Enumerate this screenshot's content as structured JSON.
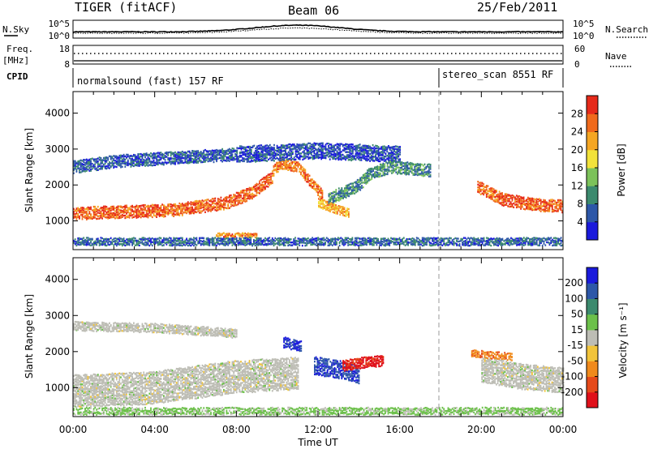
{
  "header": {
    "title": "TIGER (fitACF)",
    "beam": "Beam 06",
    "date": "25/Feb/2011"
  },
  "top_panels": {
    "nsky": {
      "label": "N.Sky",
      "ticks": [
        "10^5",
        "10^0"
      ],
      "right_ticks": [
        "10^5",
        "10^0"
      ],
      "right_label": "N.Search"
    },
    "freq": {
      "label_line1": "Freq.",
      "label_line2": "[MHz]",
      "ticks": [
        "18",
        "8"
      ],
      "right_ticks": [
        "60",
        "0"
      ],
      "right_label": "Nave"
    },
    "cpid": {
      "label": "CPID",
      "modes": [
        {
          "name": "normalsound (fast) 157 RF",
          "start_hour": 0,
          "end_hour": 18
        },
        {
          "name": "stereo_scan 8551 RF",
          "start_hour": 18,
          "end_hour": 24
        }
      ]
    }
  },
  "x_axis": {
    "label": "Time UT",
    "range_hours": [
      0,
      24
    ],
    "ticks": [
      "00:00",
      "04:00",
      "08:00",
      "12:00",
      "16:00",
      "20:00",
      "00:00"
    ]
  },
  "colors": {
    "power_scale": [
      "#1a1adc",
      "#2d57a8",
      "#3c8a6e",
      "#7cc25a",
      "#f2e23a",
      "#f5a623",
      "#f06a1c",
      "#e62a1a"
    ],
    "velocity_scale": [
      "#1a1adc",
      "#2d57a8",
      "#3c8a6e",
      "#6cc04a",
      "#bdbdb5",
      "#f2c43a",
      "#f08a1c",
      "#e64a1a",
      "#e0101a"
    ]
  },
  "chart_data": [
    {
      "type": "heatmap",
      "name": "power",
      "ylabel": "Slant Range [km]",
      "ylim": [
        200,
        4600
      ],
      "yticks": [
        "1000",
        "2000",
        "3000",
        "4000"
      ],
      "colorbar_label": "Power [dB]",
      "colorbar_ticks": [
        "4",
        "8",
        "12",
        "16",
        "20",
        "24",
        "28"
      ],
      "colorbar_range": [
        0,
        32
      ],
      "bands": [
        {
          "x": [
            0.0,
            5.0,
            7.5,
            8.8,
            9.8
          ],
          "y": [
            1200,
            1300,
            1500,
            1800,
            2250
          ],
          "width_km": 350,
          "value": 27
        },
        {
          "x": [
            9.8,
            10.2,
            11.0,
            12.2
          ],
          "y": [
            2400,
            2600,
            2500,
            1700
          ],
          "width_km": 300,
          "value": 25
        },
        {
          "x": [
            0.0,
            2.0,
            5.0,
            8.0
          ],
          "y": [
            2500,
            2650,
            2750,
            2850
          ],
          "width_km": 350,
          "value": 6
        },
        {
          "x": [
            8.0,
            10.0,
            12.0,
            14.0,
            16.0
          ],
          "y": [
            2850,
            2900,
            2950,
            2900,
            2850
          ],
          "width_km": 450,
          "value": 5
        },
        {
          "x": [
            12.5,
            14.0,
            14.5,
            15.5,
            17.5
          ],
          "y": [
            1600,
            2000,
            2300,
            2500,
            2400
          ],
          "width_km": 350,
          "value": 10
        },
        {
          "x": [
            19.8,
            21.0,
            22.5,
            24.0
          ],
          "y": [
            1950,
            1600,
            1450,
            1400
          ],
          "width_km": 350,
          "value": 27
        },
        {
          "x": [
            12.0,
            13.5
          ],
          "y": [
            1500,
            1200
          ],
          "width_km": 250,
          "value": 22
        },
        {
          "x": [
            7.0,
            9.0
          ],
          "y": [
            600,
            600
          ],
          "width_km": 120,
          "value": 24
        },
        {
          "x": [
            0.0,
            24.0
          ],
          "y": [
            420,
            420
          ],
          "width_km": 220,
          "value": 7
        }
      ]
    },
    {
      "type": "heatmap",
      "name": "velocity",
      "ylabel": "Slant Range [km]",
      "ylim": [
        200,
        4600
      ],
      "yticks": [
        "1000",
        "2000",
        "3000",
        "4000"
      ],
      "colorbar_label": "Velocity [m s⁻¹]",
      "colorbar_ticks": [
        "200",
        "100",
        "50",
        "15",
        "-15",
        "-50",
        "-100",
        "-200"
      ],
      "bands": [
        {
          "x": [
            0.0,
            4.0,
            8.0,
            11.0
          ],
          "y": [
            900,
            1000,
            1300,
            1400
          ],
          "width_km": 900,
          "value": 0
        },
        {
          "x": [
            0.0,
            4.0,
            8.0
          ],
          "y": [
            2700,
            2650,
            2500
          ],
          "width_km": 250,
          "value": 0
        },
        {
          "x": [
            11.8,
            13.0,
            14.0
          ],
          "y": [
            1600,
            1500,
            1350
          ],
          "width_km": 500,
          "value": 180
        },
        {
          "x": [
            13.2,
            14.3,
            15.2
          ],
          "y": [
            1600,
            1700,
            1750
          ],
          "width_km": 300,
          "value": -200
        },
        {
          "x": [
            10.3,
            11.2
          ],
          "y": [
            2250,
            2150
          ],
          "width_km": 300,
          "value": 190
        },
        {
          "x": [
            20.0,
            22.0,
            24.0
          ],
          "y": [
            1500,
            1300,
            1200
          ],
          "width_km": 700,
          "value": 0
        },
        {
          "x": [
            0.0,
            24.0
          ],
          "y": [
            350,
            350
          ],
          "width_km": 200,
          "value": 40
        },
        {
          "x": [
            19.5,
            21.5
          ],
          "y": [
            1950,
            1850
          ],
          "width_km": 200,
          "value": -120
        }
      ]
    }
  ]
}
